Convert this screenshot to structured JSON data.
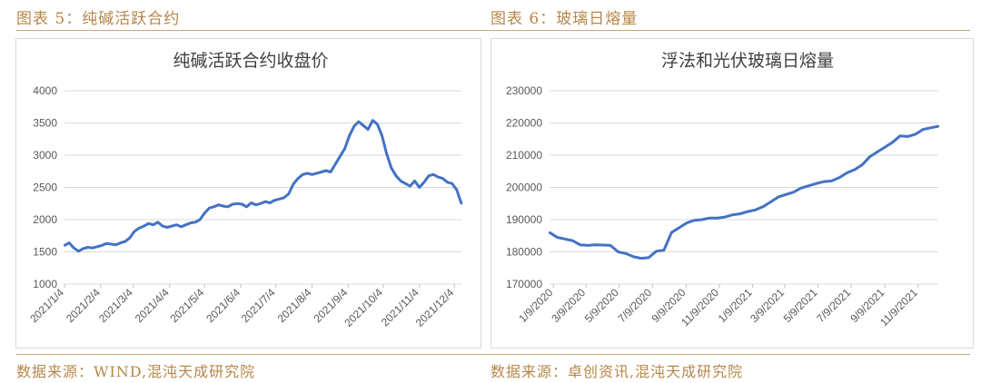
{
  "captions": {
    "left": "图表 5：纯碱活跃合约",
    "right": "图表 6：玻璃日熔量"
  },
  "sources": {
    "left": "数据来源：WIND,混沌天成研究院",
    "right": "数据来源：卓创资讯,混沌天成研究院"
  },
  "colors": {
    "line": "#4472c4",
    "caption": "#b5874a",
    "grid": "#d9d9d9",
    "axis_text": "#595959"
  },
  "chart_data": [
    {
      "type": "line",
      "title": "纯碱活跃合约收盘价",
      "xlabel": "",
      "ylabel": "",
      "ylim": [
        1000,
        4000
      ],
      "yticks": [
        1000,
        1500,
        2000,
        2500,
        3000,
        3500,
        4000
      ],
      "grid": true,
      "xticks": [
        "2021/1/4",
        "2021/2/4",
        "2021/3/4",
        "2021/4/4",
        "2021/5/4",
        "2021/6/4",
        "2021/7/4",
        "2021/8/4",
        "2021/9/4",
        "2021/10/4",
        "2021/11/4",
        "2021/12/4"
      ],
      "x": [
        "2021/1/4",
        "2021/1/8",
        "2021/1/12",
        "2021/1/16",
        "2021/1/20",
        "2021/1/24",
        "2021/1/28",
        "2021/2/1",
        "2021/2/5",
        "2021/2/9",
        "2021/2/13",
        "2021/2/17",
        "2021/2/21",
        "2021/2/25",
        "2021/3/1",
        "2021/3/5",
        "2021/3/9",
        "2021/3/13",
        "2021/3/17",
        "2021/3/21",
        "2021/3/25",
        "2021/3/29",
        "2021/4/2",
        "2021/4/6",
        "2021/4/10",
        "2021/4/14",
        "2021/4/18",
        "2021/4/22",
        "2021/4/26",
        "2021/4/30",
        "2021/5/4",
        "2021/5/8",
        "2021/5/12",
        "2021/5/16",
        "2021/5/20",
        "2021/5/24",
        "2021/5/28",
        "2021/6/1",
        "2021/6/5",
        "2021/6/9",
        "2021/6/13",
        "2021/6/17",
        "2021/6/21",
        "2021/6/25",
        "2021/6/29",
        "2021/7/3",
        "2021/7/7",
        "2021/7/11",
        "2021/7/15",
        "2021/7/19",
        "2021/7/23",
        "2021/7/27",
        "2021/7/31",
        "2021/8/4",
        "2021/8/8",
        "2021/8/12",
        "2021/8/16",
        "2021/8/20",
        "2021/8/24",
        "2021/8/28",
        "2021/9/1",
        "2021/9/5",
        "2021/9/9",
        "2021/9/13",
        "2021/9/17",
        "2021/9/21",
        "2021/9/25",
        "2021/9/29",
        "2021/10/3",
        "2021/10/7",
        "2021/10/11",
        "2021/10/15",
        "2021/10/19",
        "2021/10/23",
        "2021/10/27",
        "2021/10/31",
        "2021/11/4",
        "2021/11/8",
        "2021/11/12",
        "2021/11/16",
        "2021/11/20",
        "2021/11/24",
        "2021/11/28",
        "2021/12/2",
        "2021/12/6",
        "2021/12/10"
      ],
      "series": [
        {
          "values": [
            1600,
            1640,
            1560,
            1510,
            1550,
            1570,
            1560,
            1580,
            1600,
            1630,
            1620,
            1610,
            1640,
            1660,
            1720,
            1820,
            1870,
            1900,
            1940,
            1920,
            1960,
            1900,
            1880,
            1900,
            1920,
            1890,
            1920,
            1950,
            1960,
            2000,
            2100,
            2180,
            2200,
            2230,
            2210,
            2200,
            2240,
            2250,
            2240,
            2200,
            2260,
            2230,
            2250,
            2280,
            2260,
            2300,
            2320,
            2340,
            2400,
            2550,
            2640,
            2700,
            2720,
            2700,
            2720,
            2740,
            2760,
            2740,
            2860,
            2980,
            3100,
            3300,
            3450,
            3520,
            3460,
            3400,
            3540,
            3480,
            3300,
            3020,
            2800,
            2680,
            2600,
            2560,
            2520,
            2600,
            2500,
            2580,
            2680,
            2700,
            2660,
            2640,
            2580,
            2560,
            2460,
            2250
          ]
        }
      ]
    },
    {
      "type": "line",
      "title": "浮法和光伏玻璃日熔量",
      "xlabel": "",
      "ylabel": "",
      "ylim": [
        170000,
        230000
      ],
      "yticks": [
        170000,
        180000,
        190000,
        200000,
        210000,
        220000,
        230000
      ],
      "grid": true,
      "xticks": [
        "1/9/2020",
        "3/9/2020",
        "5/9/2020",
        "7/9/2020",
        "9/9/2020",
        "11/9/2020",
        "1/9/2021",
        "3/9/2021",
        "5/9/2021",
        "7/9/2021",
        "9/9/2021",
        "11/9/2021"
      ],
      "x": [
        "2020-01-02",
        "2020-01-16",
        "2020-01-30",
        "2020-02-13",
        "2020-02-27",
        "2020-03-12",
        "2020-03-26",
        "2020-04-09",
        "2020-04-23",
        "2020-05-07",
        "2020-05-21",
        "2020-06-04",
        "2020-06-18",
        "2020-07-02",
        "2020-07-16",
        "2020-07-30",
        "2020-08-13",
        "2020-08-27",
        "2020-09-10",
        "2020-09-24",
        "2020-10-08",
        "2020-10-22",
        "2020-11-05",
        "2020-11-19",
        "2020-12-03",
        "2020-12-17",
        "2020-12-31",
        "2021-01-14",
        "2021-01-28",
        "2021-02-11",
        "2021-02-25",
        "2021-03-11",
        "2021-03-25",
        "2021-04-08",
        "2021-04-22",
        "2021-05-06",
        "2021-05-20",
        "2021-06-03",
        "2021-06-17",
        "2021-07-01",
        "2021-07-15",
        "2021-07-29",
        "2021-08-12",
        "2021-08-26",
        "2021-09-09",
        "2021-09-23",
        "2021-10-07",
        "2021-10-21",
        "2021-11-04",
        "2021-11-18",
        "2021-12-02",
        "2021-12-16"
      ],
      "series": [
        {
          "values": [
            186000,
            184500,
            184000,
            183500,
            182200,
            182000,
            182200,
            182100,
            182000,
            180000,
            179500,
            178500,
            178000,
            178200,
            180200,
            180500,
            186000,
            187500,
            189000,
            189800,
            190000,
            190500,
            190500,
            190800,
            191500,
            191800,
            192500,
            193000,
            194000,
            195500,
            197000,
            197800,
            198500,
            199800,
            200500,
            201200,
            201800,
            202000,
            203000,
            204500,
            205500,
            207000,
            209500,
            211000,
            212500,
            214000,
            216000,
            215800,
            216500,
            218000,
            218500,
            219000
          ]
        }
      ]
    }
  ]
}
